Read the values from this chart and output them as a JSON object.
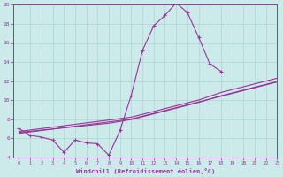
{
  "xlabel": "Windchill (Refroidissement éolien,°C)",
  "bg_color": "#cceaea",
  "grid_color": "#aad4d4",
  "line_color": "#993399",
  "x_values": [
    0,
    1,
    2,
    3,
    4,
    5,
    6,
    7,
    8,
    9,
    10,
    11,
    12,
    13,
    14,
    15,
    16,
    17,
    18,
    19,
    20,
    21,
    22,
    23
  ],
  "main_data": [
    7.0,
    6.3,
    6.1,
    5.8,
    4.5,
    5.8,
    5.5,
    5.4,
    4.2,
    6.8,
    10.5,
    15.2,
    17.8,
    18.9,
    20.2,
    19.2,
    16.6,
    13.8,
    13.0,
    null,
    null,
    null,
    null,
    null
  ],
  "linear1": [
    6.7,
    6.85,
    7.0,
    7.15,
    7.3,
    7.45,
    7.6,
    7.75,
    7.9,
    8.05,
    8.2,
    8.5,
    8.8,
    9.1,
    9.4,
    9.7,
    10.0,
    10.4,
    10.8,
    11.1,
    11.4,
    11.7,
    12.0,
    12.3
  ],
  "linear2": [
    6.5,
    6.65,
    6.8,
    6.95,
    7.1,
    7.25,
    7.4,
    7.55,
    7.7,
    7.85,
    8.0,
    8.3,
    8.6,
    8.9,
    9.2,
    9.5,
    9.8,
    10.1,
    10.4,
    10.7,
    11.0,
    11.3,
    11.6,
    11.9
  ],
  "linear3": [
    6.6,
    6.72,
    6.84,
    6.96,
    7.08,
    7.2,
    7.32,
    7.44,
    7.56,
    7.75,
    7.95,
    8.25,
    8.55,
    8.85,
    9.15,
    9.45,
    9.75,
    10.1,
    10.45,
    10.75,
    11.05,
    11.35,
    11.65,
    11.95
  ],
  "ylim": [
    4,
    20
  ],
  "xlim": [
    -0.5,
    23
  ],
  "yticks": [
    4,
    6,
    8,
    10,
    12,
    14,
    16,
    18,
    20
  ],
  "xticks": [
    0,
    1,
    2,
    3,
    4,
    5,
    6,
    7,
    8,
    9,
    10,
    11,
    12,
    13,
    14,
    15,
    16,
    17,
    18,
    19,
    20,
    21,
    22,
    23
  ]
}
